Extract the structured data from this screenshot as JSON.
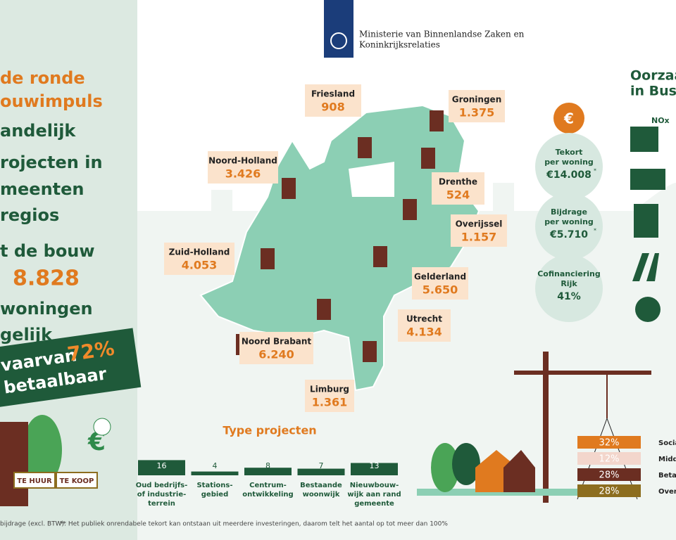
{
  "header": {
    "ministry": [
      "Ministerie van Binnenlandse Zaken en",
      "Koninkrijksrelaties"
    ]
  },
  "intro": {
    "lines": [
      {
        "text": "de ronde",
        "style": "orange"
      },
      {
        "text": "ouwimpuls",
        "style": "orange"
      },
      {
        "text": "andelijk",
        "style": "green"
      },
      {
        "text": "rojecten in",
        "style": "green"
      },
      {
        "text": "meenten",
        "style": "green"
      },
      {
        "text": "regios",
        "style": "green"
      },
      {
        "text": "t de bouw",
        "style": "green"
      },
      {
        "text": "8.828",
        "style": "big"
      },
      {
        "text": "woningen",
        "style": "green"
      },
      {
        "text": "gelijk",
        "style": "green"
      }
    ],
    "banner": {
      "before": "vaarvan",
      "share": "72%",
      "after": "betaalbaar"
    }
  },
  "provinces": [
    {
      "name": "Friesland",
      "value": "908"
    },
    {
      "name": "Groningen",
      "value": "1.375"
    },
    {
      "name": "Noord-Holland",
      "value": "3.426"
    },
    {
      "name": "Drenthe",
      "value": "524"
    },
    {
      "name": "Overijssel",
      "value": "1.157"
    },
    {
      "name": "Zuid-Holland",
      "value": "4.053"
    },
    {
      "name": "Gelderland",
      "value": "5.650"
    },
    {
      "name": "Utrecht",
      "value": "4.134"
    },
    {
      "name": "Noord Brabant",
      "value": "6.240"
    },
    {
      "name": "Limburg",
      "value": "1.361"
    }
  ],
  "costs": [
    {
      "label": [
        "Tekort",
        "per woning"
      ],
      "value": "€14.008",
      "note": "*"
    },
    {
      "label": [
        "Bijdrage",
        "per woning"
      ],
      "value": "€5.710",
      "note": "*"
    },
    {
      "label": [
        "Cofinanciering",
        "Rijk"
      ],
      "value": "41%"
    }
  ],
  "causes": {
    "title": [
      "Oorzaa",
      "in Busin"
    ],
    "nox": "NOx"
  },
  "type_projects": {
    "title": "Type projecten",
    "items": [
      {
        "value": 16,
        "label": [
          "Oud bedrijfs-",
          "of industrie-",
          "terrein"
        ]
      },
      {
        "value": 4,
        "label": [
          "Stations-",
          "gebied"
        ]
      },
      {
        "value": 8,
        "label": [
          "Centrum-",
          "ontwikkeling"
        ]
      },
      {
        "value": 7,
        "label": [
          "Bestaande",
          "woonwijk"
        ]
      },
      {
        "value": 13,
        "label": [
          "Nieuwbouw-",
          "wijk aan rand",
          "gemeente"
        ]
      }
    ]
  },
  "shares": [
    {
      "value": "32%",
      "label": "Socia",
      "color": "#e07a1f"
    },
    {
      "value": "12%",
      "label": "Midd",
      "color": "#f3d6cc"
    },
    {
      "value": "28%",
      "label": "Beta",
      "color": "#6b2e22"
    },
    {
      "value": "28%",
      "label": "Over",
      "color": "#8c6d1f"
    }
  ],
  "signs": [
    "TE HUUR",
    "TE KOOP"
  ],
  "footnote": [
    "bijdrage (excl. BTW).",
    "**  Het publiek onrendabele tekort kan ontstaan uit meerdere investeringen, daarom telt het aantal op tot meer dan 100%"
  ]
}
